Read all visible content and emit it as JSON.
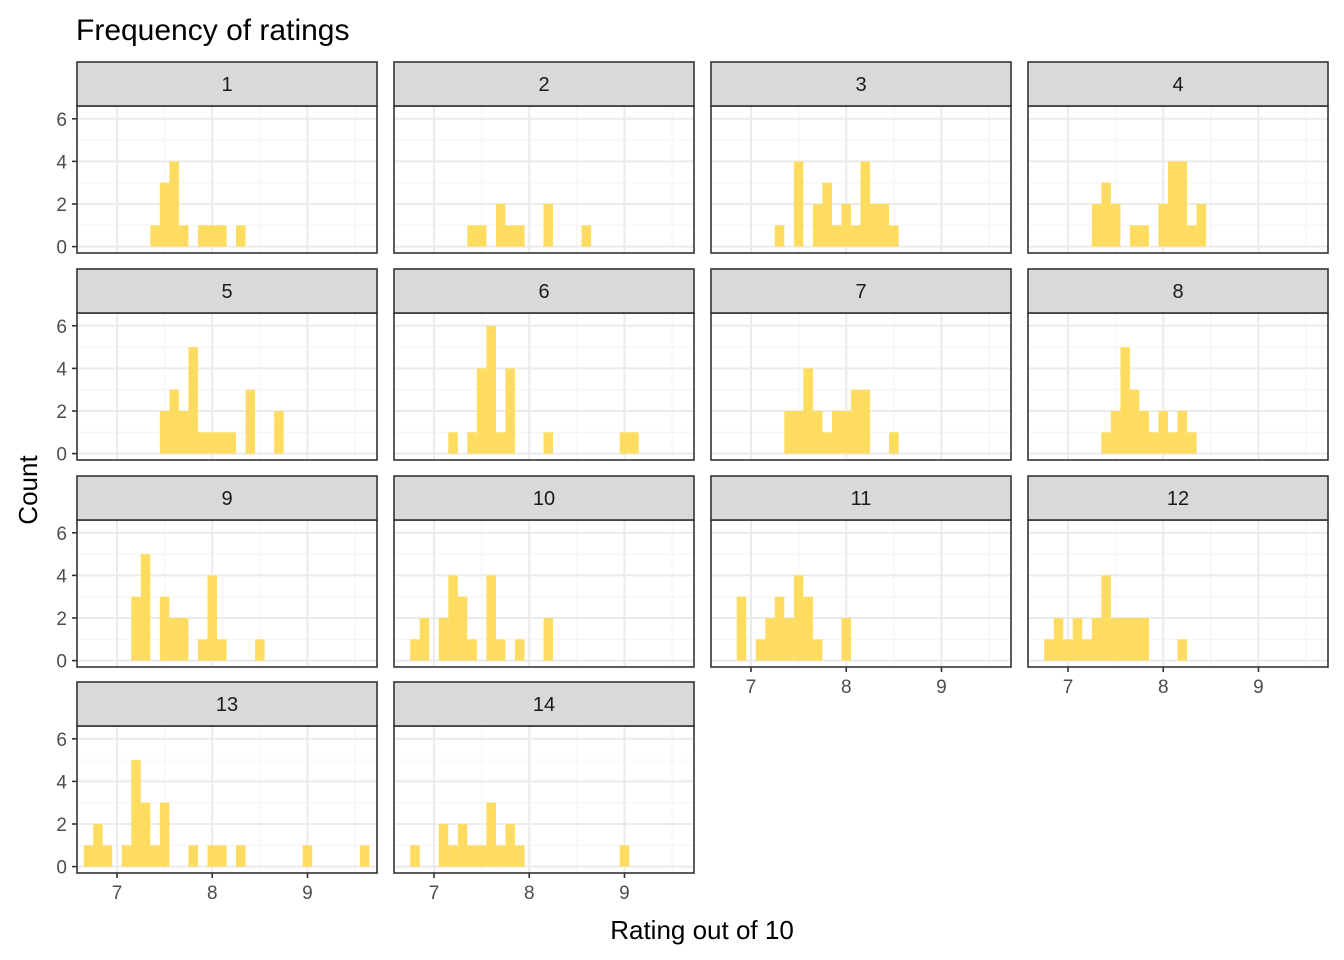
{
  "chart_data": {
    "type": "bar",
    "title": "Frequency of ratings",
    "xlabel": "Rating out of 10",
    "ylabel": "Count",
    "xlim": [
      6.58,
      9.73
    ],
    "ylim": [
      -0.3,
      6.6
    ],
    "x_ticks": [
      7,
      8,
      9
    ],
    "y_ticks": [
      0,
      2,
      4,
      6
    ],
    "bin_width": 0.1,
    "grid": true,
    "colors": {
      "bar": "#FDDC5F",
      "strip": "#D9D9D9",
      "grid_major": "#EBEBEB",
      "grid_minor": "#F5F5F5",
      "border": "#333333"
    },
    "panels": [
      {
        "label": "1",
        "bars": [
          [
            7.4,
            1
          ],
          [
            7.5,
            3
          ],
          [
            7.6,
            4
          ],
          [
            7.7,
            1
          ],
          [
            7.9,
            1
          ],
          [
            8.0,
            1
          ],
          [
            8.1,
            1
          ],
          [
            8.3,
            1
          ]
        ]
      },
      {
        "label": "2",
        "bars": [
          [
            7.4,
            1
          ],
          [
            7.5,
            1
          ],
          [
            7.7,
            2
          ],
          [
            7.8,
            1
          ],
          [
            7.9,
            1
          ],
          [
            8.2,
            2
          ],
          [
            8.6,
            1
          ]
        ]
      },
      {
        "label": "3",
        "bars": [
          [
            7.3,
            1
          ],
          [
            7.5,
            4
          ],
          [
            7.7,
            2
          ],
          [
            7.8,
            3
          ],
          [
            7.9,
            1
          ],
          [
            8.0,
            2
          ],
          [
            8.1,
            1
          ],
          [
            8.2,
            4
          ],
          [
            8.3,
            2
          ],
          [
            8.4,
            2
          ],
          [
            8.5,
            1
          ]
        ]
      },
      {
        "label": "4",
        "bars": [
          [
            7.3,
            2
          ],
          [
            7.4,
            3
          ],
          [
            7.5,
            2
          ],
          [
            7.7,
            1
          ],
          [
            7.8,
            1
          ],
          [
            8.0,
            2
          ],
          [
            8.1,
            4
          ],
          [
            8.2,
            4
          ],
          [
            8.3,
            1
          ],
          [
            8.4,
            2
          ]
        ]
      },
      {
        "label": "5",
        "bars": [
          [
            7.5,
            2
          ],
          [
            7.6,
            3
          ],
          [
            7.7,
            2
          ],
          [
            7.8,
            5
          ],
          [
            7.9,
            1
          ],
          [
            8.0,
            1
          ],
          [
            8.1,
            1
          ],
          [
            8.2,
            1
          ],
          [
            8.4,
            3
          ],
          [
            8.7,
            2
          ]
        ]
      },
      {
        "label": "6",
        "bars": [
          [
            7.2,
            1
          ],
          [
            7.4,
            1
          ],
          [
            7.5,
            4
          ],
          [
            7.6,
            6
          ],
          [
            7.7,
            1
          ],
          [
            7.8,
            4
          ],
          [
            8.2,
            1
          ],
          [
            9.0,
            1
          ],
          [
            9.1,
            1
          ]
        ]
      },
      {
        "label": "7",
        "bars": [
          [
            7.4,
            2
          ],
          [
            7.5,
            2
          ],
          [
            7.6,
            4
          ],
          [
            7.7,
            2
          ],
          [
            7.8,
            1
          ],
          [
            7.9,
            2
          ],
          [
            8.0,
            2
          ],
          [
            8.1,
            3
          ],
          [
            8.2,
            3
          ],
          [
            8.5,
            1
          ]
        ]
      },
      {
        "label": "8",
        "bars": [
          [
            7.4,
            1
          ],
          [
            7.5,
            2
          ],
          [
            7.6,
            5
          ],
          [
            7.7,
            3
          ],
          [
            7.8,
            2
          ],
          [
            7.9,
            1
          ],
          [
            8.0,
            2
          ],
          [
            8.1,
            1
          ],
          [
            8.2,
            2
          ],
          [
            8.3,
            1
          ]
        ]
      },
      {
        "label": "9",
        "bars": [
          [
            7.2,
            3
          ],
          [
            7.3,
            5
          ],
          [
            7.5,
            3
          ],
          [
            7.6,
            2
          ],
          [
            7.7,
            2
          ],
          [
            7.9,
            1
          ],
          [
            8.0,
            4
          ],
          [
            8.1,
            1
          ],
          [
            8.5,
            1
          ]
        ]
      },
      {
        "label": "10",
        "bars": [
          [
            6.8,
            1
          ],
          [
            6.9,
            2
          ],
          [
            7.1,
            2
          ],
          [
            7.2,
            4
          ],
          [
            7.3,
            3
          ],
          [
            7.4,
            1
          ],
          [
            7.6,
            4
          ],
          [
            7.7,
            1
          ],
          [
            7.9,
            1
          ],
          [
            8.2,
            2
          ]
        ]
      },
      {
        "label": "11",
        "bars": [
          [
            6.9,
            3
          ],
          [
            7.1,
            1
          ],
          [
            7.2,
            2
          ],
          [
            7.3,
            3
          ],
          [
            7.4,
            2
          ],
          [
            7.5,
            4
          ],
          [
            7.6,
            3
          ],
          [
            7.7,
            1
          ],
          [
            8.0,
            2
          ]
        ]
      },
      {
        "label": "12",
        "bars": [
          [
            6.8,
            1
          ],
          [
            6.9,
            2
          ],
          [
            7.0,
            1
          ],
          [
            7.1,
            2
          ],
          [
            7.2,
            1
          ],
          [
            7.3,
            2
          ],
          [
            7.4,
            4
          ],
          [
            7.5,
            2
          ],
          [
            7.6,
            2
          ],
          [
            7.7,
            2
          ],
          [
            7.8,
            2
          ],
          [
            8.2,
            1
          ]
        ]
      },
      {
        "label": "13",
        "bars": [
          [
            6.7,
            1
          ],
          [
            6.8,
            2
          ],
          [
            6.9,
            1
          ],
          [
            7.1,
            1
          ],
          [
            7.2,
            5
          ],
          [
            7.3,
            3
          ],
          [
            7.4,
            1
          ],
          [
            7.5,
            3
          ],
          [
            7.8,
            1
          ],
          [
            8.0,
            1
          ],
          [
            8.1,
            1
          ],
          [
            8.3,
            1
          ],
          [
            9.0,
            1
          ],
          [
            9.6,
            1
          ]
        ]
      },
      {
        "label": "14",
        "bars": [
          [
            6.8,
            1
          ],
          [
            7.1,
            2
          ],
          [
            7.2,
            1
          ],
          [
            7.3,
            2
          ],
          [
            7.4,
            1
          ],
          [
            7.5,
            1
          ],
          [
            7.6,
            3
          ],
          [
            7.7,
            1
          ],
          [
            7.8,
            2
          ],
          [
            7.9,
            1
          ],
          [
            9.0,
            1
          ]
        ]
      }
    ]
  }
}
